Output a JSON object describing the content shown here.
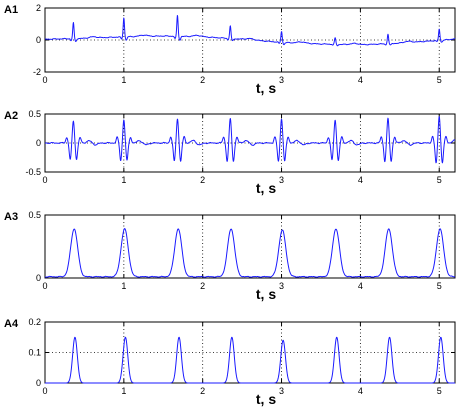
{
  "chart_data": [
    {
      "type": "line",
      "panel_label": "A1",
      "xlabel": "t, s",
      "ylabel": "",
      "xlim": [
        0,
        5.2
      ],
      "ylim": [
        -2,
        2
      ],
      "x_ticks": [
        0,
        1,
        2,
        3,
        4,
        5
      ],
      "y_ticks": [
        -2,
        0,
        2
      ],
      "x_tick_labels": [
        "0",
        "1",
        "2",
        "3",
        "4",
        "5"
      ],
      "y_tick_labels": [
        "-2",
        "0",
        "2"
      ],
      "grid": "dotted at labeled ticks",
      "color": "#1a1aff",
      "series": [
        {
          "description_kind": "raw ECG with baseline wander",
          "peak_times": [
            0.36,
            1.0,
            1.68,
            2.35,
            3.0,
            3.68,
            4.35,
            5.0
          ],
          "peak_values": [
            1.0,
            1.2,
            1.3,
            0.8,
            0.7,
            0.4,
            0.6,
            0.7
          ],
          "baseline_x": [
            0,
            0.5,
            1.0,
            1.5,
            2.0,
            2.5,
            3.0,
            3.5,
            4.0,
            4.5,
            5.2
          ],
          "baseline_y": [
            0.05,
            0.1,
            0.2,
            0.25,
            0.2,
            0.05,
            -0.15,
            -0.25,
            -0.3,
            -0.2,
            0.05
          ]
        }
      ]
    },
    {
      "type": "line",
      "panel_label": "A2",
      "xlabel": "t, s",
      "ylabel": "",
      "xlim": [
        0,
        5.2
      ],
      "ylim": [
        -0.5,
        0.5
      ],
      "x_ticks": [
        0,
        1,
        2,
        3,
        4,
        5
      ],
      "y_ticks": [
        -0.5,
        0,
        0.5
      ],
      "x_tick_labels": [
        "0",
        "1",
        "2",
        "3",
        "4",
        "5"
      ],
      "y_tick_labels": [
        "-0.5",
        "0",
        "0.5"
      ],
      "grid": "dotted at labeled ticks",
      "color": "#1a1aff",
      "series": [
        {
          "description_kind": "band-pass filtered ECG",
          "peak_times": [
            0.36,
            1.0,
            1.68,
            2.35,
            3.0,
            3.68,
            4.35,
            5.0
          ],
          "peak_values": [
            0.38,
            0.4,
            0.42,
            0.42,
            0.42,
            0.4,
            0.42,
            0.46
          ]
        }
      ]
    },
    {
      "type": "line",
      "panel_label": "A3",
      "xlabel": "t, s",
      "ylabel": "",
      "xlim": [
        0,
        5.2
      ],
      "ylim": [
        0,
        0.5
      ],
      "x_ticks": [
        0,
        1,
        2,
        3,
        4,
        5
      ],
      "y_ticks": [
        0,
        0.5
      ],
      "x_tick_labels": [
        "0",
        "1",
        "2",
        "3",
        "4",
        "5"
      ],
      "y_tick_labels": [
        "0",
        "0.5"
      ],
      "grid": "dotted at labeled ticks",
      "color": "#1a1aff",
      "series": [
        {
          "description_kind": "signal envelope",
          "peak_times": [
            0.37,
            1.01,
            1.69,
            2.36,
            3.01,
            3.69,
            4.36,
            5.01
          ],
          "peak_values": [
            0.38,
            0.38,
            0.38,
            0.38,
            0.37,
            0.38,
            0.38,
            0.38
          ]
        }
      ]
    },
    {
      "type": "line",
      "panel_label": "A4",
      "xlabel": "t, s",
      "ylabel": "",
      "xlim": [
        0,
        5.2
      ],
      "ylim": [
        0,
        0.2
      ],
      "x_ticks": [
        0,
        1,
        2,
        3,
        4,
        5
      ],
      "y_ticks": [
        0,
        0.1,
        0.2
      ],
      "x_tick_labels": [
        "0",
        "1",
        "2",
        "3",
        "4",
        "5"
      ],
      "y_tick_labels": [
        "0",
        "0.1",
        "0.2"
      ],
      "grid": "dotted at labeled ticks",
      "threshold": 0.1,
      "color": "#1a1aff",
      "series": [
        {
          "description_kind": "squared envelope with threshold",
          "peak_times": [
            0.38,
            1.02,
            1.7,
            2.37,
            3.02,
            3.7,
            4.37,
            5.02
          ],
          "peak_values": [
            0.15,
            0.15,
            0.15,
            0.15,
            0.14,
            0.15,
            0.15,
            0.15
          ]
        }
      ]
    }
  ]
}
